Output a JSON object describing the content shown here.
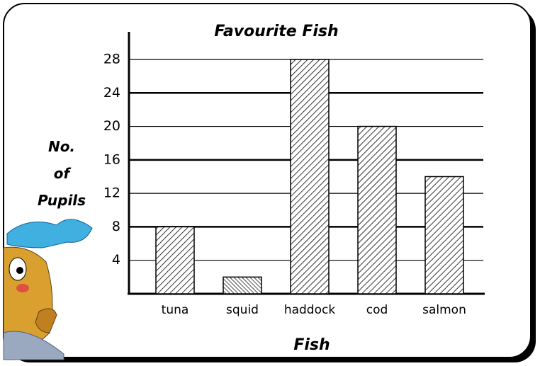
{
  "chart_data": {
    "type": "bar",
    "title": "Favourite Fish",
    "x_label": "Fish",
    "y_label": "No. of Pupils",
    "categories": [
      "tuna",
      "squid",
      "haddock",
      "cod",
      "salmon"
    ],
    "values": [
      8,
      2,
      28,
      20,
      14
    ],
    "ylim": [
      0,
      31
    ],
    "yticks": [
      4,
      8,
      12,
      16,
      20,
      24,
      28
    ],
    "grid": true
  }
}
